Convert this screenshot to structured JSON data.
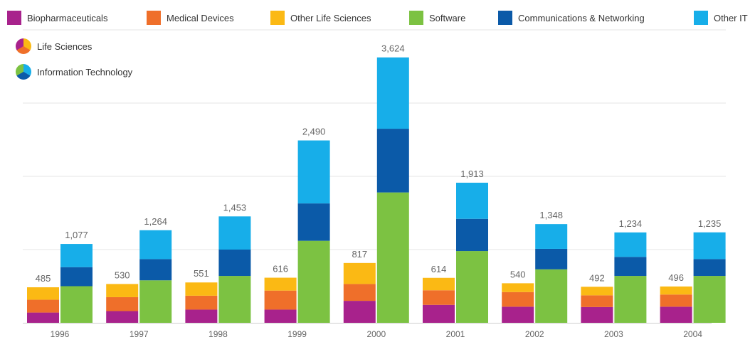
{
  "legend": {
    "items": [
      {
        "label": "Biopharmaceuticals",
        "color": "#a8228c"
      },
      {
        "label": "Medical Devices",
        "color": "#ef6f2a"
      },
      {
        "label": "Other Life Sciences",
        "color": "#fbb914"
      },
      {
        "label": "Software",
        "color": "#7cc242"
      },
      {
        "label": "Communications & Networking",
        "color": "#0b5aa8"
      },
      {
        "label": "Other IT",
        "color": "#17aee9"
      }
    ],
    "groups": [
      {
        "label": "Life Sciences",
        "icon": "life-sciences-icon"
      },
      {
        "label": "Information Technology",
        "icon": "information-technology-icon"
      }
    ]
  },
  "chart_data": {
    "type": "bar",
    "stacked": true,
    "grouped": true,
    "ylim": [
      0,
      4000
    ],
    "grid": true,
    "categories": [
      "1996",
      "1997",
      "1998",
      "1999",
      "2000",
      "2001",
      "2002",
      "2003",
      "2004"
    ],
    "groups": [
      {
        "name": "Life Sciences",
        "totals": [
          485,
          530,
          551,
          616,
          817,
          614,
          540,
          492,
          496
        ],
        "series": [
          {
            "name": "Biopharmaceuticals",
            "color": "#a8228c",
            "values": [
              140,
              160,
              180,
              180,
              300,
              245,
              220,
              215,
              220
            ]
          },
          {
            "name": "Medical Devices",
            "color": "#ef6f2a",
            "values": [
              175,
              190,
              190,
              260,
              230,
              199,
              200,
              160,
              166
            ]
          },
          {
            "name": "Other Life Sciences",
            "color": "#fbb914",
            "values": [
              170,
              180,
              181,
              176,
              287,
              170,
              120,
              117,
              110
            ]
          }
        ]
      },
      {
        "name": "Information Technology",
        "totals": [
          1077,
          1264,
          1453,
          2490,
          3624,
          1913,
          1348,
          1234,
          1235
        ],
        "series": [
          {
            "name": "Software",
            "color": "#7cc242",
            "values": [
              500,
              580,
              640,
              1120,
              1780,
              980,
              730,
              640,
              640
            ]
          },
          {
            "name": "Communications & Networking",
            "color": "#0b5aa8",
            "values": [
              260,
              290,
              360,
              510,
              870,
              440,
              280,
              260,
              230
            ]
          },
          {
            "name": "Other IT",
            "color": "#17aee9",
            "values": [
              317,
              394,
              453,
              860,
              974,
              493,
              338,
              334,
              365
            ]
          }
        ]
      }
    ]
  }
}
